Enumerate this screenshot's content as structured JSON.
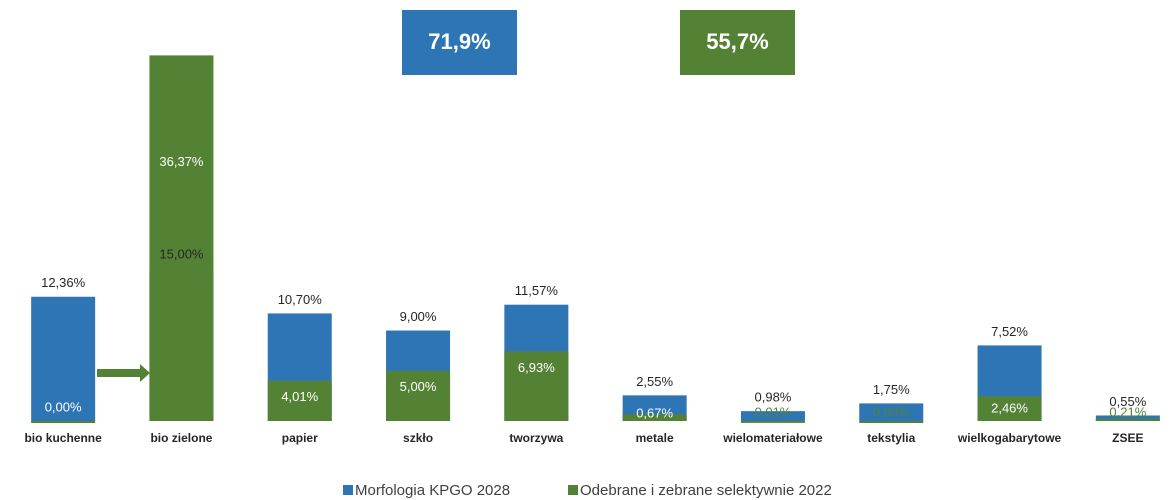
{
  "chart_data": {
    "type": "overlap-bar",
    "annotations": [
      {
        "text": "71,9%",
        "color": "#2e75b6"
      },
      {
        "text": "55,7%",
        "color": "#548235"
      }
    ],
    "categories": [
      "bio kuchenne",
      "bio zielone",
      "papier",
      "szkło",
      "tworzywa",
      "metale",
      "wielomateriałowe",
      "tekstylia",
      "wielkogabarytowe",
      "ZSEE"
    ],
    "series": [
      {
        "name": "Morfologia KPGO 2028",
        "color": "#2e75b6",
        "values": [
          12.36,
          15.0,
          10.7,
          9.0,
          11.57,
          2.55,
          0.98,
          1.75,
          7.52,
          0.55
        ],
        "value_labels": [
          "12,36%",
          "15,00%",
          "10,70%",
          "9,00%",
          "11,57%",
          "2,55%",
          "0,98%",
          "1,75%",
          "7,52%",
          "0,55%"
        ]
      },
      {
        "name": "Odebrane i zebrane selektywnie 2022",
        "color": "#548235",
        "values": [
          0.0,
          36.37,
          4.01,
          5.0,
          6.93,
          0.67,
          0.01,
          0.0,
          2.46,
          0.21
        ],
        "value_labels": [
          "0,00%",
          "36,37%",
          "4,01%",
          "5,00%",
          "6,93%",
          "0,67%",
          "0,01%",
          "0,00%",
          "2,46%",
          "0,21%"
        ]
      }
    ],
    "ylim": [
      0,
      38
    ]
  }
}
